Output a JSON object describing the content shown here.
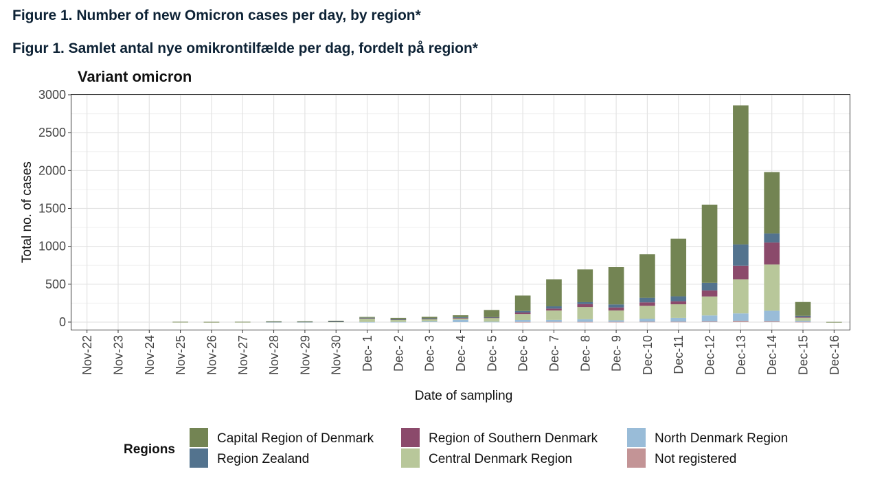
{
  "figure_title_en": "Figure 1. Number of new Omicron cases per day, by region*",
  "figure_title_da": "Figur 1. Samlet antal nye omikrontilfælde per dag, fordelt på region*",
  "colors": {
    "Capital Region of Denmark": "#738453",
    "Region Zealand": "#53738e",
    "Region of Southern Denmark": "#8b4a6b",
    "Central Denmark Region": "#b8c79a",
    "North Denmark Region": "#99bcd8",
    "Not registered": "#c39496"
  },
  "chart_data": {
    "type": "bar",
    "stacked": true,
    "title": "Variant omicron",
    "xlabel": "Date of sampling",
    "ylabel": "Total no. of cases",
    "ylim": [
      -100,
      3000
    ],
    "yticks": [
      0,
      500,
      1000,
      1500,
      2000,
      2500,
      3000
    ],
    "grid": true,
    "legend_title": "Regions",
    "legend_position": "bottom",
    "legend_order": [
      "Capital Region of Denmark",
      "Region Zealand",
      "Region of Southern Denmark",
      "Central Denmark Region",
      "North Denmark Region",
      "Not registered"
    ],
    "categories": [
      "Nov-22",
      "Nov-23",
      "Nov-24",
      "Nov-25",
      "Nov-26",
      "Nov-27",
      "Nov-28",
      "Nov-29",
      "Nov-30",
      "Dec- 1",
      "Dec- 2",
      "Dec- 3",
      "Dec- 4",
      "Dec- 5",
      "Dec- 6",
      "Dec- 7",
      "Dec- 8",
      "Dec- 9",
      "Dec-10",
      "Dec-11",
      "Dec-12",
      "Dec-13",
      "Dec-14",
      "Dec-15",
      "Dec-16"
    ],
    "series": [
      {
        "name": "Not registered",
        "values": [
          0,
          0,
          0,
          0,
          0,
          0,
          0,
          0,
          0,
          0,
          0,
          0,
          0,
          0,
          2,
          3,
          3,
          3,
          5,
          5,
          8,
          15,
          10,
          3,
          0
        ]
      },
      {
        "name": "North Denmark Region",
        "values": [
          0,
          0,
          0,
          0,
          0,
          0,
          0,
          0,
          0,
          2,
          3,
          10,
          30,
          5,
          25,
          25,
          35,
          20,
          40,
          50,
          80,
          100,
          140,
          15,
          0
        ]
      },
      {
        "name": "Central Denmark Region",
        "values": [
          0,
          0,
          0,
          2,
          1,
          2,
          3,
          3,
          5,
          50,
          30,
          30,
          20,
          50,
          80,
          125,
          160,
          130,
          170,
          180,
          250,
          450,
          610,
          40,
          1
        ]
      },
      {
        "name": "Region of Southern Denmark",
        "values": [
          0,
          0,
          0,
          0,
          0,
          0,
          0,
          0,
          2,
          2,
          2,
          5,
          5,
          5,
          20,
          25,
          40,
          40,
          45,
          40,
          80,
          180,
          290,
          10,
          0
        ]
      },
      {
        "name": "Region Zealand",
        "values": [
          0,
          0,
          0,
          0,
          0,
          0,
          1,
          1,
          2,
          3,
          3,
          5,
          10,
          5,
          20,
          30,
          25,
          40,
          60,
          65,
          100,
          280,
          120,
          15,
          0
        ]
      },
      {
        "name": "Capital Region of Denmark",
        "values": [
          0,
          0,
          0,
          2,
          2,
          2,
          6,
          6,
          9,
          11,
          17,
          20,
          25,
          95,
          203,
          357,
          432,
          492,
          575,
          760,
          1032,
          1835,
          810,
          182,
          1
        ]
      }
    ]
  }
}
